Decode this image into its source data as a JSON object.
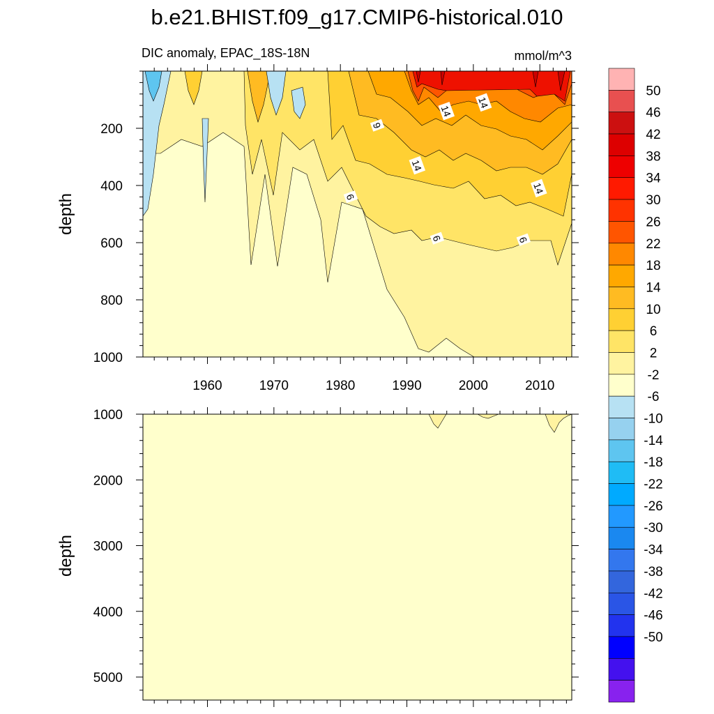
{
  "title": "b.e21.BHIST.f09_g17.CMIP6-historical.010",
  "chart_data": {
    "type": "heatmap",
    "subtitle_left": "DIC anomaly, EPAC_18S-18N",
    "subtitle_right": "mmol/m^3",
    "x_ticks": [
      "1960",
      "1970",
      "1980",
      "1990",
      "2000",
      "2010"
    ],
    "x_tick_values": [
      1960,
      1970,
      1980,
      1990,
      2000,
      2010
    ],
    "xlim": [
      1950.3,
      2014.8
    ],
    "panels": [
      {
        "name": "upper",
        "ylabel": "depth",
        "ylim": [
          0,
          1000
        ],
        "y_ticks": [
          "200",
          "400",
          "600",
          "800",
          "1000"
        ],
        "y_tick_values": [
          200,
          400,
          600,
          800,
          1000
        ],
        "contour_labels": [
          {
            "text": "9",
            "year": 1985.5,
            "depth": 190
          },
          {
            "text": "14",
            "year": 1995.9,
            "depth": 140
          },
          {
            "text": "14",
            "year": 2001.5,
            "depth": 110
          },
          {
            "text": "14",
            "year": 1991.5,
            "depth": 330
          },
          {
            "text": "6",
            "year": 1981.5,
            "depth": 440
          },
          {
            "text": "14",
            "year": 2009.8,
            "depth": 410
          },
          {
            "text": "6",
            "year": 1994.5,
            "depth": 585
          },
          {
            "text": "6",
            "year": 2007.5,
            "depth": 590
          }
        ]
      },
      {
        "name": "lower",
        "ylabel": "depth",
        "ylim": [
          1000,
          5350
        ],
        "y_ticks": [
          "1000",
          "2000",
          "3000",
          "4000",
          "5000"
        ],
        "y_tick_values": [
          1000,
          2000,
          3000,
          4000,
          5000
        ],
        "contour_labels": []
      }
    ],
    "colorbar": {
      "labels": [
        "50",
        "46",
        "42",
        "38",
        "34",
        "30",
        "26",
        "22",
        "18",
        "14",
        "10",
        "6",
        "2",
        "-2",
        "-6",
        "-10",
        "-14",
        "-18",
        "-22",
        "-26",
        "-30",
        "-34",
        "-38",
        "-42",
        "-46",
        "-50"
      ],
      "colors": [
        "#ffb3b3",
        "#e85050",
        "#cc1010",
        "#dd0000",
        "#ee0000",
        "#ff1a00",
        "#ff3300",
        "#ff5500",
        "#ff8800",
        "#ffa800",
        "#ffbb22",
        "#ffd033",
        "#ffe466",
        "#fff3a0",
        "#ffffcc",
        "#b7e1f3",
        "#96d1ef",
        "#5ec5f0",
        "#1fbcf5",
        "#00aaff",
        "#2299ff",
        "#1a88f0",
        "#3377ee",
        "#3366dd",
        "#2a55e6",
        "#2233ee",
        "#0000ff",
        "#4411ee",
        "#8822ee"
      ]
    },
    "field_colors": {
      "pale": "#ffffcc",
      "low": "#fff3a0",
      "mid": "#ffe466",
      "gold": "#ffd033",
      "amber": "#ffbb22",
      "orange": "#ffa800",
      "dark_orange": "#ff8800",
      "red_orange": "#ff5500",
      "red": "#ee1100",
      "dark_red": "#cc0000",
      "light_blue": "#b7e1f3",
      "blue": "#5ec5f0",
      "deep_blue": "#1fa8e8"
    }
  }
}
